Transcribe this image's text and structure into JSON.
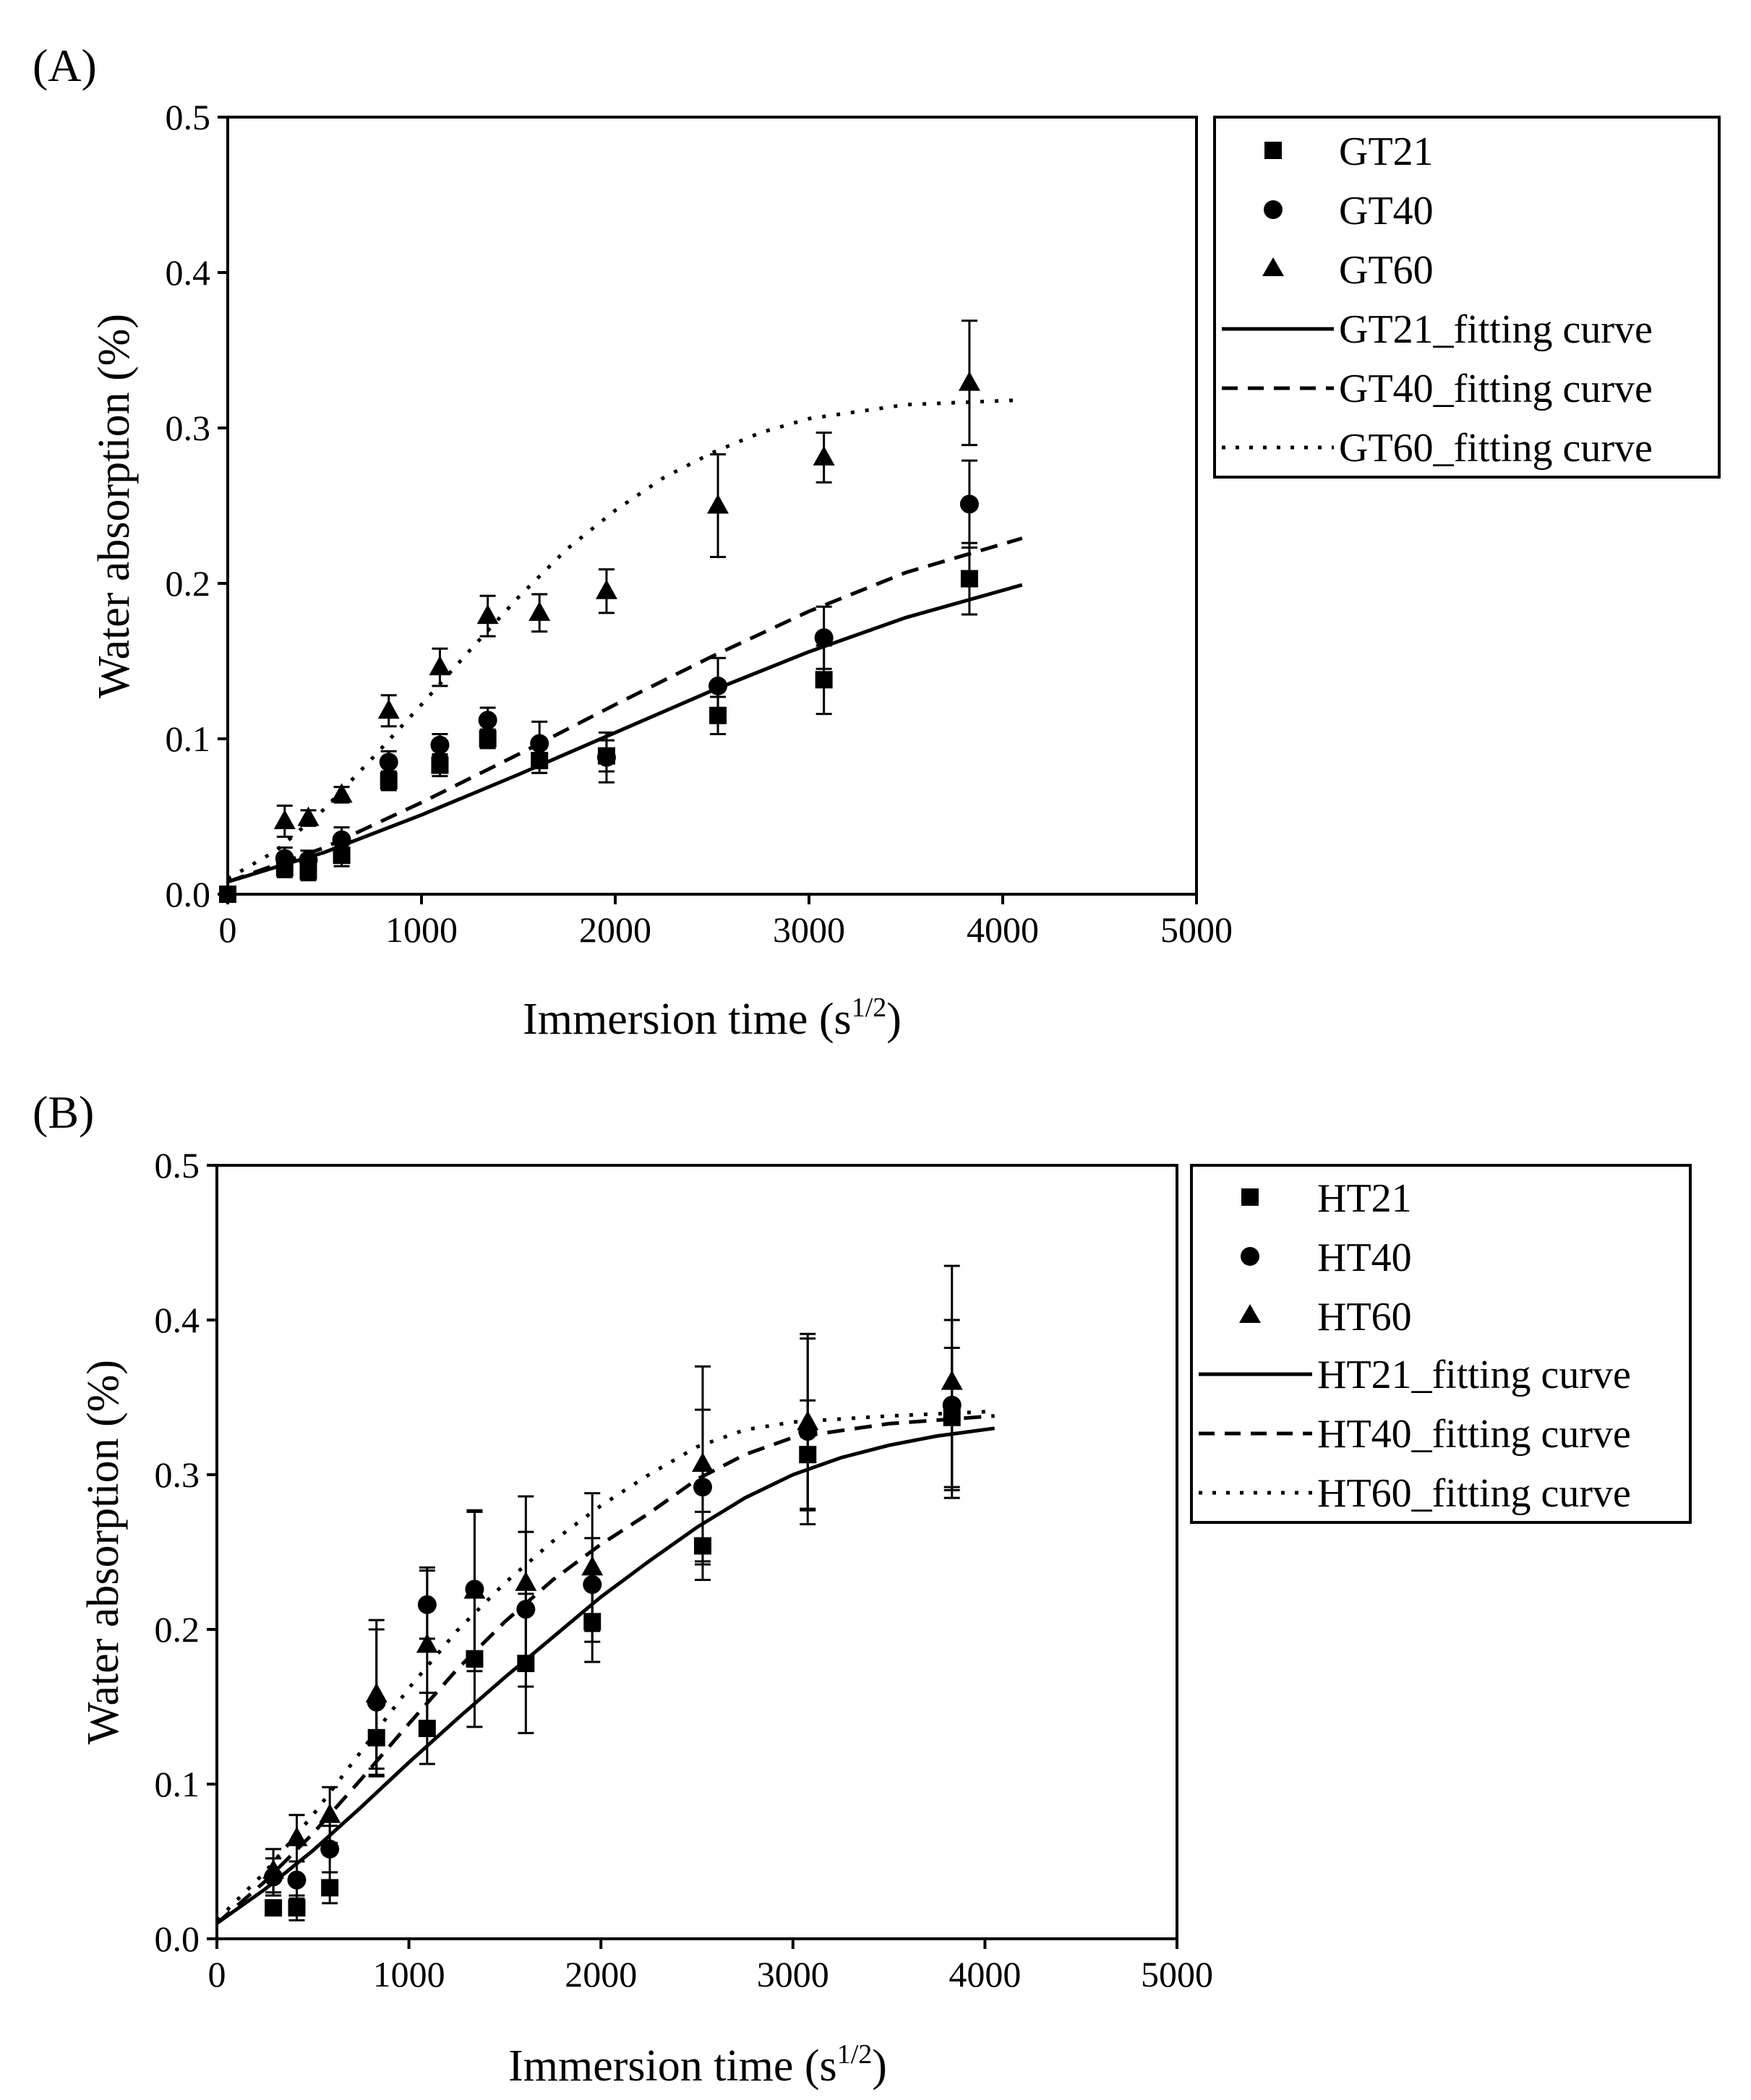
{
  "chart_data": [
    {
      "type": "scatter",
      "panel_label": "(A)",
      "xlabel": "Immersion time (s",
      "xlabel_sup": "1/2",
      "xlabel_tail": ")",
      "ylabel": "Water absorption (%)",
      "xlim": [
        0,
        5000
      ],
      "ylim": [
        0,
        0.5
      ],
      "xticks": [
        {
          "value": 0,
          "label": "0"
        },
        {
          "value": 1000,
          "label": "1000"
        },
        {
          "value": 2000,
          "label": "2000"
        },
        {
          "value": 3000,
          "label": "3000"
        },
        {
          "value": 4000,
          "label": "4000"
        },
        {
          "value": 5000,
          "label": "5000"
        }
      ],
      "yticks": [
        {
          "value": 0,
          "label": "0.0"
        },
        {
          "value": 0.1,
          "label": "0.1"
        },
        {
          "value": 0.2,
          "label": "0.2"
        },
        {
          "value": 0.3,
          "label": "0.3"
        },
        {
          "value": 0.4,
          "label": "0.4"
        },
        {
          "value": 0.5,
          "label": "0.5"
        }
      ],
      "legend_position": "right",
      "series": [
        {
          "name": "GT21",
          "marker": "square",
          "x": [
            0,
            294,
            416,
            588,
            831,
            1095,
            1342,
            1609,
            1955,
            2530,
            3077,
            3828
          ],
          "y": [
            0.0,
            0.017,
            0.015,
            0.025,
            0.073,
            0.083,
            0.1,
            0.086,
            0.089,
            0.115,
            0.138,
            0.203
          ],
          "err": [
            0,
            0.006,
            0.006,
            0.007,
            0.006,
            0.007,
            0.006,
            0.008,
            0.01,
            0.012,
            0.022,
            0.023
          ]
        },
        {
          "name": "GT40",
          "marker": "circle",
          "x": [
            294,
            416,
            588,
            831,
            1095,
            1342,
            1609,
            1955,
            2530,
            3077,
            3828
          ],
          "y": [
            0.023,
            0.022,
            0.035,
            0.085,
            0.096,
            0.112,
            0.097,
            0.088,
            0.134,
            0.165,
            0.251
          ],
          "err": [
            0.007,
            0.006,
            0.008,
            0.007,
            0.007,
            0.008,
            0.014,
            0.016,
            0.018,
            0.02,
            0.028
          ]
        },
        {
          "name": "GT60",
          "marker": "triangle",
          "x": [
            294,
            416,
            588,
            831,
            1095,
            1342,
            1609,
            1955,
            2530,
            3077,
            3828
          ],
          "y": [
            0.047,
            0.049,
            0.064,
            0.118,
            0.146,
            0.179,
            0.181,
            0.195,
            0.25,
            0.281,
            0.329
          ],
          "err": [
            0.01,
            0.005,
            0.005,
            0.01,
            0.012,
            0.013,
            0.012,
            0.014,
            0.033,
            0.016,
            0.04
          ]
        }
      ],
      "fits": [
        {
          "name": "GT21_fitting curve",
          "dash": "solid",
          "x": [
            0,
            500,
            1000,
            1500,
            2000,
            2500,
            3000,
            3500,
            4100
          ],
          "y": [
            0.008,
            0.027,
            0.051,
            0.077,
            0.104,
            0.131,
            0.156,
            0.178,
            0.199
          ]
        },
        {
          "name": "GT40_fitting curve",
          "dash": "dashed",
          "x": [
            0,
            500,
            1000,
            1500,
            2000,
            2500,
            3000,
            3500,
            4100
          ],
          "y": [
            0.008,
            0.03,
            0.059,
            0.09,
            0.122,
            0.153,
            0.182,
            0.207,
            0.229
          ]
        },
        {
          "name": "GT60_fitting curve",
          "dash": "dotted",
          "x": [
            0,
            250,
            500,
            750,
            1000,
            1250,
            1500,
            1750,
            2000,
            2250,
            2500,
            2750,
            3000,
            3500,
            4100
          ],
          "y": [
            0.01,
            0.028,
            0.055,
            0.088,
            0.122,
            0.157,
            0.191,
            0.222,
            0.247,
            0.268,
            0.284,
            0.297,
            0.306,
            0.315,
            0.318
          ]
        }
      ]
    },
    {
      "type": "scatter",
      "panel_label": "(B)",
      "xlabel": "Immersion time (s",
      "xlabel_sup": "1/2",
      "xlabel_tail": ")",
      "ylabel": "Water absorption (%)",
      "xlim": [
        0,
        5000
      ],
      "ylim": [
        0,
        0.5
      ],
      "xticks": [
        {
          "value": 0,
          "label": "0"
        },
        {
          "value": 1000,
          "label": "1000"
        },
        {
          "value": 2000,
          "label": "2000"
        },
        {
          "value": 3000,
          "label": "3000"
        },
        {
          "value": 4000,
          "label": "4000"
        },
        {
          "value": 5000,
          "label": "5000"
        }
      ],
      "yticks": [
        {
          "value": 0,
          "label": "0.0"
        },
        {
          "value": 0.1,
          "label": "0.1"
        },
        {
          "value": 0.2,
          "label": "0.2"
        },
        {
          "value": 0.3,
          "label": "0.3"
        },
        {
          "value": 0.4,
          "label": "0.4"
        },
        {
          "value": 0.5,
          "label": "0.5"
        }
      ],
      "legend_position": "right",
      "series": [
        {
          "name": "HT21",
          "marker": "square",
          "x": [
            294,
            416,
            588,
            831,
            1095,
            1342,
            1609,
            1955,
            2530,
            3077,
            3828
          ],
          "y": [
            0.02,
            0.02,
            0.033,
            0.13,
            0.136,
            0.181,
            0.178,
            0.205,
            0.254,
            0.313,
            0.337
          ],
          "err": [
            0.004,
            0.008,
            0.01,
            0.025,
            0.023,
            0.044,
            0.045,
            0.026,
            0.022,
            0.035,
            0.045
          ]
        },
        {
          "name": "HT40",
          "marker": "circle",
          "x": [
            294,
            416,
            588,
            831,
            1095,
            1342,
            1609,
            1955,
            2530,
            3077,
            3828
          ],
          "y": [
            0.04,
            0.038,
            0.058,
            0.153,
            0.216,
            0.226,
            0.213,
            0.229,
            0.292,
            0.328,
            0.345
          ],
          "err": [
            0.012,
            0.012,
            0.015,
            0.047,
            0.022,
            0.05,
            0.05,
            0.03,
            0.05,
            0.06,
            0.055
          ]
        },
        {
          "name": "HT60",
          "marker": "triangle",
          "x": [
            294,
            416,
            588,
            831,
            1095,
            1342,
            1609,
            1955,
            2530,
            3077,
            3828
          ],
          "y": [
            0.044,
            0.065,
            0.08,
            0.158,
            0.19,
            0.225,
            0.23,
            0.24,
            0.307,
            0.334,
            0.36
          ],
          "err": [
            0.014,
            0.015,
            0.018,
            0.048,
            0.05,
            0.052,
            0.056,
            0.048,
            0.063,
            0.057,
            0.075
          ]
        }
      ],
      "fits": [
        {
          "name": "HT21_fitting curve",
          "dash": "solid",
          "x": [
            0,
            250,
            500,
            750,
            1000,
            1250,
            1500,
            1750,
            2000,
            2250,
            2500,
            2750,
            3000,
            3250,
            3500,
            3750,
            4050
          ],
          "y": [
            0.01,
            0.032,
            0.057,
            0.085,
            0.114,
            0.142,
            0.169,
            0.195,
            0.221,
            0.244,
            0.266,
            0.285,
            0.3,
            0.311,
            0.319,
            0.325,
            0.33
          ]
        },
        {
          "name": "HT40_fitting curve",
          "dash": "dashed",
          "x": [
            0,
            250,
            500,
            750,
            1000,
            1250,
            1500,
            1750,
            2000,
            2250,
            2500,
            2750,
            3000,
            3500,
            4050
          ],
          "y": [
            0.01,
            0.037,
            0.068,
            0.103,
            0.139,
            0.174,
            0.205,
            0.232,
            0.255,
            0.275,
            0.297,
            0.313,
            0.324,
            0.333,
            0.338
          ]
        },
        {
          "name": "HT60_fitting curve",
          "dash": "dotted",
          "x": [
            0,
            250,
            500,
            750,
            1000,
            1250,
            1500,
            1750,
            2000,
            2250,
            2500,
            2750,
            3000,
            3500,
            4050
          ],
          "y": [
            0.012,
            0.043,
            0.08,
            0.121,
            0.162,
            0.199,
            0.23,
            0.257,
            0.28,
            0.3,
            0.318,
            0.329,
            0.334,
            0.338,
            0.341
          ]
        }
      ]
    }
  ]
}
